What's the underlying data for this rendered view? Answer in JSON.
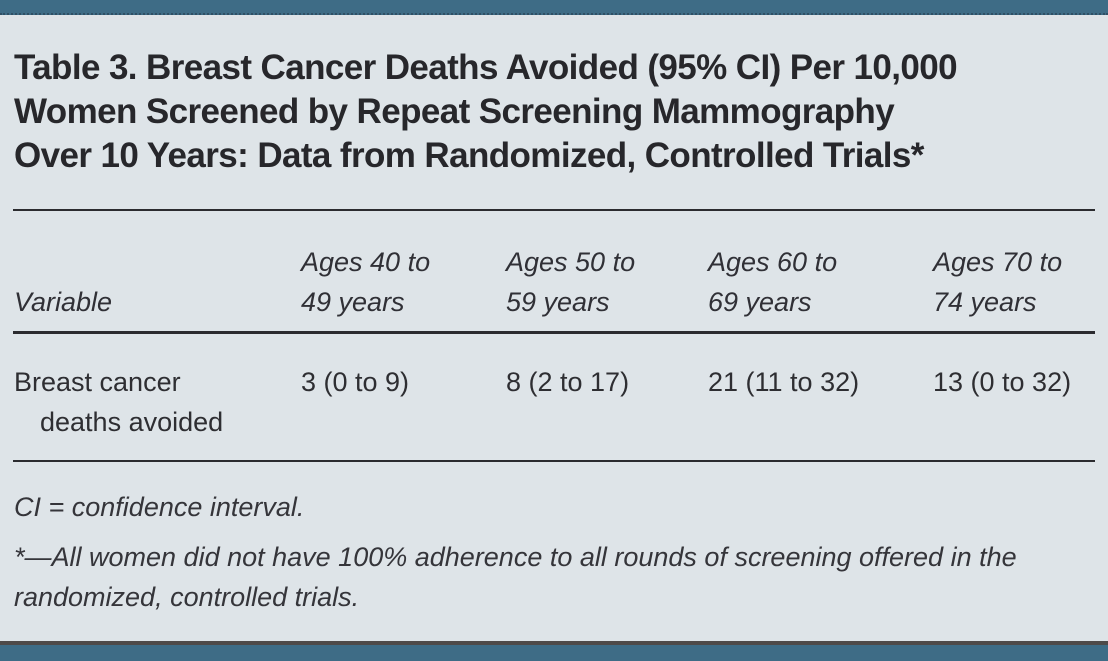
{
  "document": {
    "title_lines": [
      "Table 3. Breast Cancer Deaths Avoided (95% CI) Per 10,000",
      "Women Screened by Repeat Screening Mammography",
      "Over 10 Years: Data from Randomized, Controlled Trials*"
    ]
  },
  "table": {
    "header": {
      "variable_label": "Variable",
      "age_columns": [
        {
          "line1": "Ages 40 to",
          "line2": "49 years"
        },
        {
          "line1": "Ages 50 to",
          "line2": "59 years"
        },
        {
          "line1": "Ages 60 to",
          "line2": "69 years"
        },
        {
          "line1": "Ages 70 to",
          "line2": "74 years"
        }
      ]
    },
    "rows": [
      {
        "variable": "Breast cancer deaths avoided",
        "values": [
          "3 (0 to 9)",
          "8 (2 to 17)",
          "21 (11 to 32)",
          "13 (0 to 32)"
        ]
      }
    ]
  },
  "footnotes": {
    "abbreviation": "CI = confidence interval.",
    "asterisk": "*—All women did not have 100% adherence to all rounds of screening offered in the randomized, controlled trials."
  },
  "chart_data": {
    "type": "table",
    "title": "Table 3. Breast Cancer Deaths Avoided (95% CI) Per 10,000 Women Screened by Repeat Screening Mammography Over 10 Years: Data from Randomized, Controlled Trials*",
    "columns": [
      "Variable",
      "Ages 40 to 49 years",
      "Ages 50 to 59 years",
      "Ages 60 to 69 years",
      "Ages 70 to 74 years"
    ],
    "rows": [
      [
        "Breast cancer deaths avoided",
        "3 (0 to 9)",
        "8 (2 to 17)",
        "21 (11 to 32)",
        "13 (0 to 32)"
      ]
    ]
  },
  "colors": {
    "accent_bar": "#3e6c86",
    "background": "#dee4e8",
    "rule": "#2b2b2f",
    "text": "#2c2c30"
  }
}
